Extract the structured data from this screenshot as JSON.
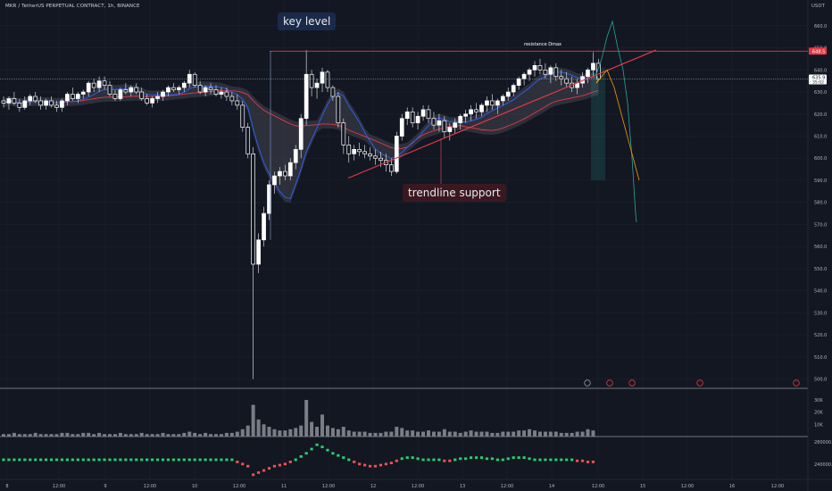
{
  "header": {
    "title": "MKR / TetherUS PERPETUAL CONTRACT, 1h, BINANCE",
    "currency": "USDT"
  },
  "annotations": {
    "key_level": "key level",
    "trendline_support": "trendline support",
    "resistance": "resistance Dmax"
  },
  "price_badges": {
    "resistance": "648.5",
    "current_upper": "635.9",
    "current_lower": "35:02"
  },
  "colors": {
    "background": "#131722",
    "up": "#ffffff",
    "down": "#ffffff",
    "resistance_line": "#e53946",
    "trendline": "#e53946",
    "ma_red": "#e53946",
    "ma_blue": "#2962ff",
    "cloud": "#434651",
    "forecast_green": "#26a69a",
    "forecast_orange": "#ff9800",
    "vol_bar": "#7b7d85",
    "osc_up": "#26d26f",
    "osc_down": "#ef5350"
  },
  "chart_data": {
    "type": "candlestick",
    "title": "MKR / TetherUS PERPETUAL CONTRACT, 1h, BINANCE",
    "x_ticks": [
      "8",
      "12:00",
      "9",
      "12:00",
      "10",
      "12:00",
      "11",
      "12:00",
      "12",
      "12:00",
      "13",
      "12:00",
      "14",
      "12:00",
      "15",
      "12:00",
      "16",
      "12:00"
    ],
    "y_ticks": [
      660,
      650,
      640,
      630,
      620,
      610,
      600,
      590,
      580,
      570,
      560,
      550,
      540,
      530,
      520,
      510,
      500
    ],
    "ylim": [
      497,
      666
    ],
    "resistance_level": 648.5,
    "current_price": 635.9,
    "key_level": 648.5,
    "trendline": {
      "from": {
        "x": "11 13:30",
        "y": 591
      },
      "to": {
        "x": "14 18:00",
        "y": 649
      }
    },
    "candles_ohlc": [
      [
        626,
        628,
        623,
        625
      ],
      [
        625,
        628,
        622,
        627
      ],
      [
        627,
        630,
        624,
        625
      ],
      [
        625,
        627,
        621,
        623
      ],
      [
        623,
        628,
        622,
        626
      ],
      [
        626,
        629,
        624,
        628
      ],
      [
        628,
        630,
        625,
        626
      ],
      [
        626,
        628,
        622,
        624
      ],
      [
        624,
        627,
        622,
        626
      ],
      [
        626,
        628,
        623,
        624
      ],
      [
        624,
        626,
        621,
        623
      ],
      [
        623,
        627,
        621,
        626
      ],
      [
        626,
        630,
        624,
        629
      ],
      [
        629,
        632,
        626,
        627
      ],
      [
        627,
        630,
        625,
        629
      ],
      [
        629,
        631,
        627,
        630
      ],
      [
        630,
        635,
        628,
        634
      ],
      [
        634,
        636,
        630,
        632
      ],
      [
        632,
        637,
        630,
        635
      ],
      [
        635,
        637,
        631,
        633
      ],
      [
        633,
        635,
        628,
        629
      ],
      [
        629,
        631,
        626,
        627
      ],
      [
        627,
        632,
        626,
        631
      ],
      [
        631,
        634,
        629,
        630
      ],
      [
        630,
        633,
        628,
        632
      ],
      [
        632,
        634,
        629,
        630
      ],
      [
        630,
        632,
        626,
        627
      ],
      [
        627,
        629,
        624,
        625
      ],
      [
        625,
        628,
        623,
        627
      ],
      [
        627,
        630,
        625,
        628
      ],
      [
        628,
        631,
        626,
        630
      ],
      [
        630,
        633,
        628,
        632
      ],
      [
        632,
        634,
        630,
        631
      ],
      [
        631,
        633,
        629,
        632
      ],
      [
        632,
        635,
        630,
        634
      ],
      [
        634,
        640,
        632,
        638
      ],
      [
        638,
        639,
        632,
        633
      ],
      [
        633,
        635,
        629,
        630
      ],
      [
        630,
        633,
        628,
        632
      ],
      [
        632,
        634,
        629,
        631
      ],
      [
        631,
        633,
        628,
        629
      ],
      [
        629,
        632,
        627,
        630
      ],
      [
        630,
        632,
        626,
        628
      ],
      [
        628,
        630,
        624,
        626
      ],
      [
        626,
        629,
        622,
        624
      ],
      [
        624,
        626,
        612,
        614
      ],
      [
        614,
        616,
        600,
        602
      ],
      [
        602,
        605,
        500,
        552
      ],
      [
        552,
        566,
        548,
        563
      ],
      [
        563,
        578,
        560,
        575
      ],
      [
        575,
        590,
        572,
        588
      ],
      [
        588,
        594,
        584,
        592
      ],
      [
        592,
        596,
        588,
        594
      ],
      [
        594,
        597,
        590,
        592
      ],
      [
        592,
        600,
        590,
        598
      ],
      [
        598,
        606,
        595,
        604
      ],
      [
        604,
        620,
        600,
        618
      ],
      [
        618,
        649,
        615,
        638
      ],
      [
        638,
        640,
        628,
        632
      ],
      [
        632,
        636,
        627,
        634
      ],
      [
        634,
        641,
        630,
        639
      ],
      [
        639,
        640,
        630,
        632
      ],
      [
        632,
        633,
        626,
        628
      ],
      [
        628,
        630,
        614,
        616
      ],
      [
        616,
        618,
        602,
        606
      ],
      [
        606,
        610,
        598,
        602
      ],
      [
        602,
        606,
        599,
        604
      ],
      [
        604,
        607,
        601,
        603
      ],
      [
        603,
        606,
        600,
        602
      ],
      [
        602,
        605,
        599,
        601
      ],
      [
        601,
        604,
        597,
        600
      ],
      [
        600,
        603,
        596,
        599
      ],
      [
        599,
        602,
        594,
        597
      ],
      [
        597,
        600,
        592,
        594
      ],
      [
        594,
        612,
        593,
        610
      ],
      [
        610,
        620,
        608,
        618
      ],
      [
        618,
        623,
        615,
        621
      ],
      [
        621,
        623,
        614,
        616
      ],
      [
        616,
        621,
        613,
        619
      ],
      [
        619,
        624,
        617,
        622
      ],
      [
        622,
        624,
        616,
        618
      ],
      [
        618,
        621,
        613,
        615
      ],
      [
        615,
        620,
        612,
        617
      ],
      [
        617,
        619,
        609,
        612
      ],
      [
        612,
        616,
        608,
        614
      ],
      [
        614,
        618,
        611,
        616
      ],
      [
        616,
        620,
        613,
        619
      ],
      [
        619,
        622,
        616,
        620
      ],
      [
        620,
        624,
        617,
        622
      ],
      [
        622,
        625,
        618,
        621
      ],
      [
        621,
        625,
        619,
        624
      ],
      [
        624,
        628,
        621,
        626
      ],
      [
        626,
        629,
        622,
        624
      ],
      [
        624,
        627,
        620,
        626
      ],
      [
        626,
        629,
        624,
        628
      ],
      [
        628,
        632,
        626,
        630
      ],
      [
        630,
        634,
        628,
        633
      ],
      [
        633,
        637,
        631,
        636
      ],
      [
        636,
        639,
        633,
        638
      ],
      [
        638,
        641,
        635,
        640
      ],
      [
        640,
        644,
        637,
        642
      ],
      [
        642,
        645,
        638,
        640
      ],
      [
        640,
        643,
        636,
        638
      ],
      [
        638,
        642,
        634,
        641
      ],
      [
        641,
        643,
        635,
        637
      ],
      [
        637,
        640,
        633,
        636
      ],
      [
        636,
        639,
        632,
        634
      ],
      [
        634,
        637,
        630,
        632
      ],
      [
        632,
        636,
        629,
        634
      ],
      [
        634,
        639,
        632,
        637
      ],
      [
        637,
        641,
        634,
        640
      ],
      [
        640,
        648,
        637,
        643
      ],
      [
        643,
        645,
        636,
        635.9
      ]
    ],
    "forecast_green": [
      636,
      638,
      645,
      655,
      662,
      650,
      640,
      625,
      600,
      575,
      571
    ],
    "forecast_orange": [
      636,
      634,
      637,
      640,
      632,
      620,
      608,
      596,
      590
    ],
    "volume": {
      "yticks": [
        "30K",
        "20K",
        "10K"
      ],
      "values": [
        2,
        2,
        3,
        2,
        2,
        2,
        3,
        2,
        2,
        2,
        2,
        3,
        3,
        2,
        2,
        3,
        3,
        2,
        3,
        2,
        2,
        2,
        3,
        2,
        2,
        2,
        3,
        2,
        2,
        2,
        3,
        2,
        2,
        2,
        3,
        4,
        3,
        2,
        3,
        2,
        2,
        2,
        3,
        3,
        4,
        6,
        9,
        26,
        14,
        10,
        8,
        6,
        5,
        5,
        6,
        7,
        9,
        30,
        12,
        8,
        18,
        9,
        7,
        6,
        8,
        5,
        4,
        4,
        4,
        3,
        3,
        3,
        4,
        4,
        8,
        7,
        5,
        5,
        4,
        4,
        5,
        4,
        4,
        6,
        4,
        4,
        3,
        4,
        5,
        4,
        4,
        4,
        3,
        3,
        4,
        4,
        4,
        5,
        5,
        6,
        5,
        4,
        4,
        4,
        4,
        3,
        3,
        3,
        4,
        4,
        6,
        5
      ]
    },
    "oscillator": {
      "yticks": [
        "280000.0",
        "240000.0"
      ],
      "values": [
        0,
        0,
        0,
        0,
        0,
        0,
        0,
        0,
        0,
        0,
        0,
        0,
        0,
        0,
        0,
        0,
        0,
        0,
        0,
        0,
        0,
        0,
        0,
        0,
        0,
        0,
        0,
        0,
        0,
        0,
        0,
        0,
        0,
        0,
        0,
        0,
        0,
        0,
        0,
        0,
        0,
        0,
        0,
        0,
        -2,
        -4,
        -6,
        -14,
        -12,
        -10,
        -8,
        -6,
        -5,
        -4,
        -2,
        0,
        3,
        6,
        10,
        14,
        12,
        9,
        6,
        4,
        2,
        0,
        -2,
        -4,
        -5,
        -6,
        -6,
        -5,
        -4,
        -3,
        -1,
        1,
        2,
        2,
        1,
        0,
        0,
        0,
        0,
        -1,
        -1,
        0,
        1,
        1,
        2,
        2,
        2,
        1,
        1,
        0,
        0,
        1,
        2,
        2,
        2,
        1,
        0,
        0,
        0,
        0,
        0,
        0,
        0,
        0,
        -1,
        -1,
        -2,
        -2
      ]
    }
  }
}
